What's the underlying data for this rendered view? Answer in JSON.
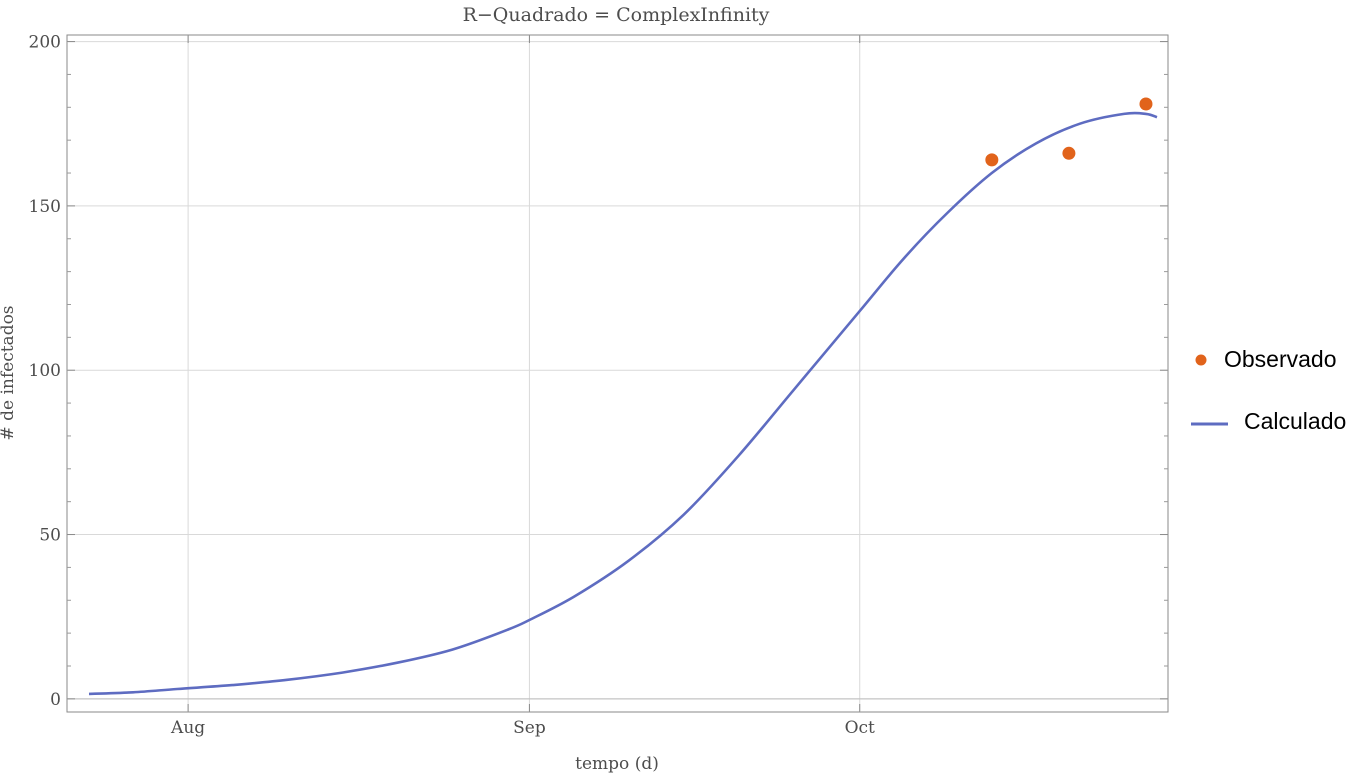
{
  "chart_data": {
    "type": "line",
    "title": "R−Quadrado = ComplexInfinity",
    "xlabel": "tempo (d)",
    "ylabel": "# de infectados",
    "x_axis_type": "date",
    "xlim": [
      "2020-07-21",
      "2020-10-29"
    ],
    "ylim": [
      -4,
      202
    ],
    "x_ticks": [
      {
        "date": "2020-08-01",
        "label": "Aug"
      },
      {
        "date": "2020-09-01",
        "label": "Sep"
      },
      {
        "date": "2020-10-01",
        "label": "Oct"
      }
    ],
    "y_ticks": [
      0,
      50,
      100,
      150,
      200
    ],
    "grid": true,
    "legend_position": "right",
    "series": [
      {
        "name": "Observado",
        "kind": "scatter",
        "color": "#E1631B",
        "points": [
          {
            "x": "2020-10-13",
            "y": 164
          },
          {
            "x": "2020-10-20",
            "y": 166
          },
          {
            "x": "2020-10-27",
            "y": 181
          }
        ]
      },
      {
        "name": "Calculado",
        "kind": "line",
        "color": "#5E6CC1",
        "points": [
          {
            "x": "2020-07-23",
            "y": 1.5
          },
          {
            "x": "2020-07-27",
            "y": 2
          },
          {
            "x": "2020-07-31",
            "y": 3
          },
          {
            "x": "2020-08-05",
            "y": 4.2
          },
          {
            "x": "2020-08-10",
            "y": 5.8
          },
          {
            "x": "2020-08-15",
            "y": 8
          },
          {
            "x": "2020-08-20",
            "y": 11
          },
          {
            "x": "2020-08-25",
            "y": 15
          },
          {
            "x": "2020-08-30",
            "y": 21
          },
          {
            "x": "2020-09-01",
            "y": 24
          },
          {
            "x": "2020-09-05",
            "y": 31
          },
          {
            "x": "2020-09-10",
            "y": 42
          },
          {
            "x": "2020-09-15",
            "y": 56
          },
          {
            "x": "2020-09-20",
            "y": 74
          },
          {
            "x": "2020-09-25",
            "y": 94
          },
          {
            "x": "2020-10-01",
            "y": 118
          },
          {
            "x": "2020-10-05",
            "y": 134
          },
          {
            "x": "2020-10-09",
            "y": 148
          },
          {
            "x": "2020-10-13",
            "y": 160
          },
          {
            "x": "2020-10-17",
            "y": 169
          },
          {
            "x": "2020-10-21",
            "y": 175
          },
          {
            "x": "2020-10-25",
            "y": 178
          },
          {
            "x": "2020-10-27",
            "y": 178
          },
          {
            "x": "2020-10-28",
            "y": 177
          }
        ]
      }
    ]
  }
}
